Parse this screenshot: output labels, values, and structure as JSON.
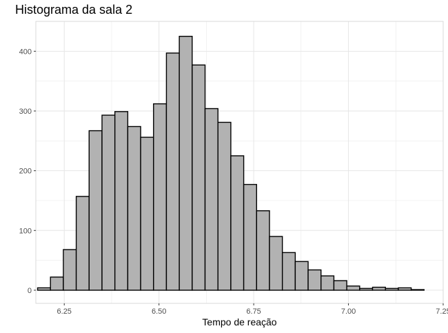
{
  "chart_data": {
    "type": "bar",
    "subtype": "histogram",
    "title": "Histograma da sala 2",
    "xlabel": "Tempo de reação",
    "ylabel": "",
    "bin_width": 0.034,
    "bin_centers": [
      6.1966,
      6.2306,
      6.2646,
      6.2986,
      6.3326,
      6.3666,
      6.4006,
      6.4346,
      6.4686,
      6.5026,
      6.5366,
      6.5706,
      6.6046,
      6.6386,
      6.6726,
      6.7066,
      6.7406,
      6.7746,
      6.8086,
      6.8426,
      6.8766,
      6.9106,
      6.9446,
      6.9786,
      7.0126,
      7.0466,
      7.0806,
      7.1146,
      7.1486,
      7.1826
    ],
    "counts": [
      4,
      22,
      68,
      157,
      267,
      293,
      299,
      274,
      256,
      312,
      397,
      425,
      377,
      304,
      281,
      225,
      177,
      133,
      90,
      63,
      48,
      34,
      24,
      16,
      7,
      3,
      5,
      3,
      4,
      1
    ],
    "xlim": [
      6.175,
      7.25
    ],
    "ylim": [
      -22,
      450
    ],
    "x_ticks": [
      6.25,
      6.5,
      6.75,
      7.0,
      7.25
    ],
    "x_tick_labels": [
      "6.25",
      "6.50",
      "6.75",
      "7.00",
      "7.25"
    ],
    "y_ticks": [
      0,
      100,
      200,
      300,
      400
    ],
    "y_tick_labels": [
      "0",
      "100",
      "200",
      "300",
      "400"
    ],
    "grid": true,
    "colors": {
      "bar_fill": "#b2b2b2",
      "bar_stroke": "#000000",
      "grid": "#e6e6e6",
      "panel_border": "#d9d9d9"
    }
  }
}
